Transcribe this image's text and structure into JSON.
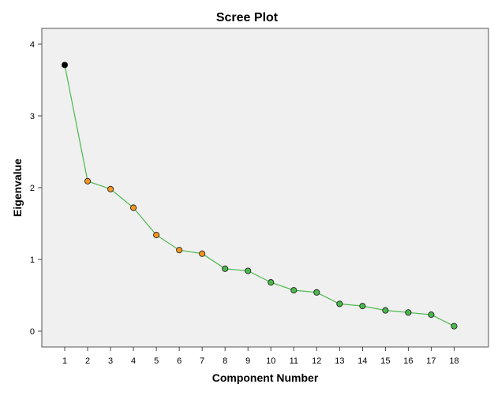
{
  "chart_data": {
    "type": "line",
    "title": "Scree Plot",
    "xlabel": "Component Number",
    "ylabel": "Eigenvalue",
    "x": [
      1,
      2,
      3,
      4,
      5,
      6,
      7,
      8,
      9,
      10,
      11,
      12,
      13,
      14,
      15,
      16,
      17,
      18
    ],
    "series": [
      {
        "values": [
          3.71,
          2.09,
          1.98,
          1.72,
          1.34,
          1.13,
          1.08,
          0.87,
          0.84,
          0.68,
          0.57,
          0.54,
          0.38,
          0.35,
          0.29,
          0.26,
          0.23,
          0.07
        ]
      }
    ],
    "xlim": [
      0,
      19.5
    ],
    "ylim": [
      -0.22,
      4.22
    ],
    "yticks": [
      0,
      1,
      2,
      3,
      4
    ],
    "xticks": [
      1,
      2,
      3,
      4,
      5,
      6,
      7,
      8,
      9,
      10,
      11,
      12,
      13,
      14,
      15,
      16,
      17,
      18
    ],
    "grid": false,
    "colors": {
      "plot_background": "#f0f0f0",
      "line": "#4cb84c",
      "point_group_1": "#000000",
      "point_group_2": "#f5961e",
      "point_group_3": "#4cb84c",
      "point_edge": "#222222"
    },
    "point_colors": [
      "point_group_1",
      "point_group_2",
      "point_group_2",
      "point_group_2",
      "point_group_2",
      "point_group_2",
      "point_group_2",
      "point_group_3",
      "point_group_3",
      "point_group_3",
      "point_group_3",
      "point_group_3",
      "point_group_3",
      "point_group_3",
      "point_group_3",
      "point_group_3",
      "point_group_3",
      "point_group_3"
    ]
  }
}
